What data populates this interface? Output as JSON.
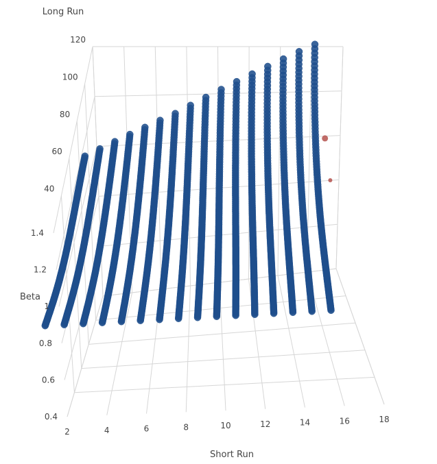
{
  "chart_data": {
    "type": "scatter3d",
    "axes": {
      "x": {
        "title": "Short Run",
        "ticks": [
          "2",
          "4",
          "6",
          "8",
          "10",
          "12",
          "14",
          "16",
          "18"
        ],
        "range": [
          2,
          18
        ]
      },
      "y": {
        "title": "Long Run",
        "ticks": [
          "40",
          "60",
          "80",
          "100",
          "120"
        ],
        "range": [
          20,
          120
        ]
      },
      "z": {
        "title": "Beta",
        "ticks": [
          "0.4",
          "0.6",
          "0.8",
          "1",
          "1.2",
          "1.4"
        ],
        "range": [
          0.4,
          1.4
        ]
      }
    },
    "grid": true,
    "legend": "none",
    "colors": {
      "series": "#1f4e8c",
      "highlight": "#b5524e",
      "grid": "#d6d6d6",
      "text": "#444444"
    },
    "curve_short_runs": [
      1,
      2,
      3,
      4,
      5,
      6,
      7,
      8,
      9,
      10,
      11,
      12,
      13,
      14,
      15,
      16
    ],
    "curve_long_run_range": [
      20,
      120
    ],
    "highlighted_points": [
      {
        "short_run": 17,
        "long_run": 120,
        "beta": 0.99
      },
      {
        "short_run": 17,
        "long_run": 90,
        "beta": 1.01
      }
    ]
  }
}
